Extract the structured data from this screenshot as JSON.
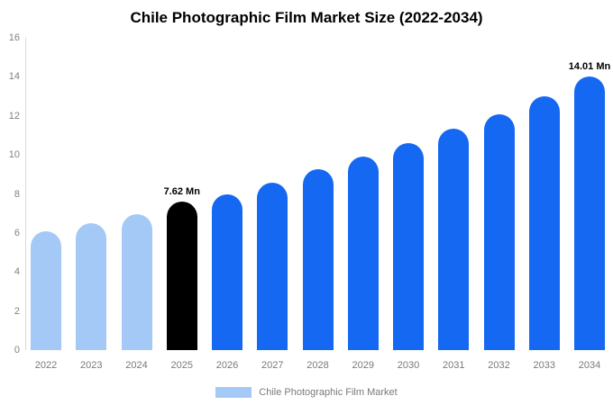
{
  "title": "Chile Photographic Film Market Size (2022-2034)",
  "legend": {
    "label": "Chile Photographic Film Market",
    "swatch_color": "#a4c9f6"
  },
  "colors": {
    "light_blue": "#a4c9f6",
    "blue": "#1568f2",
    "black": "#000000",
    "axis_text": "#808080"
  },
  "chart_data": {
    "type": "bar",
    "title": "Chile Photographic Film Market Size (2022-2034)",
    "xlabel": "",
    "ylabel": "",
    "categories": [
      "2022",
      "2023",
      "2024",
      "2025",
      "2026",
      "2027",
      "2028",
      "2029",
      "2030",
      "2031",
      "2032",
      "2033",
      "2034"
    ],
    "values": [
      6.1,
      6.5,
      6.95,
      7.62,
      8.0,
      8.6,
      9.25,
      9.9,
      10.6,
      11.35,
      12.1,
      13.0,
      14.01
    ],
    "bar_colors": [
      "#a4c9f6",
      "#a4c9f6",
      "#a4c9f6",
      "#000000",
      "#1568f2",
      "#1568f2",
      "#1568f2",
      "#1568f2",
      "#1568f2",
      "#1568f2",
      "#1568f2",
      "#1568f2",
      "#1568f2"
    ],
    "annotations": [
      {
        "category": "2025",
        "text": "7.62 Mn"
      },
      {
        "category": "2034",
        "text": "14.01 Mn"
      }
    ],
    "ylim": [
      0,
      16
    ],
    "yticks": [
      0,
      2,
      4,
      6,
      8,
      10,
      12,
      14,
      16
    ],
    "grid": false,
    "legend_position": "bottom"
  }
}
